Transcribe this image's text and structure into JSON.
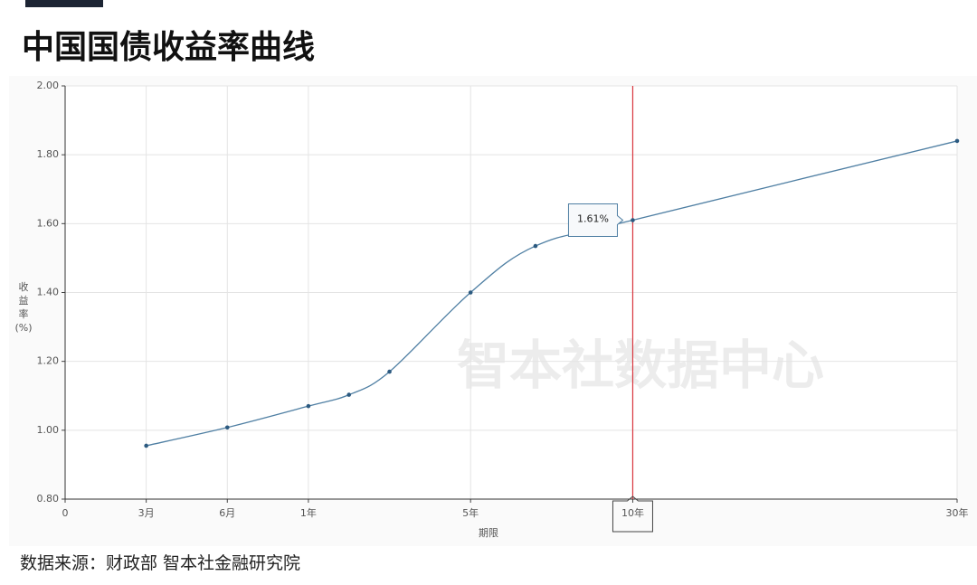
{
  "title": "中国国债收益率曲线",
  "source": "数据来源：财政部 智本社金融研究院",
  "watermark": "智本社数据中心",
  "chart_data": {
    "type": "line",
    "x_label": "期限",
    "y_label": "收益率(%)",
    "x": [
      0.25,
      0.5,
      1,
      2,
      3,
      5,
      7,
      10,
      30
    ],
    "series": [
      {
        "name": "收益率",
        "color": "#4f7fa3",
        "values": [
          0.955,
          1.008,
          1.07,
          1.103,
          1.17,
          1.4,
          1.535,
          1.61,
          1.84
        ]
      }
    ],
    "xticks": [
      0,
      {
        "value": 0.25,
        "label": "3月"
      },
      {
        "value": 0.5,
        "label": "6月"
      },
      {
        "value": 1,
        "label": "1年"
      },
      {
        "value": 5,
        "label": "5年"
      },
      {
        "value": 10,
        "label": "10年"
      },
      {
        "value": 30,
        "label": "30年"
      }
    ],
    "xlim": [
      0,
      30
    ],
    "ylim": [
      0.8,
      2.0
    ],
    "yticks": [
      {
        "value": 0.8,
        "label": "0.80"
      },
      {
        "value": 1.0,
        "label": "1.00"
      },
      {
        "value": 1.2,
        "label": "1.20"
      },
      {
        "value": 1.4,
        "label": "1.40"
      },
      {
        "value": 1.6,
        "label": "1.60"
      },
      {
        "value": 1.8,
        "label": "1.80"
      },
      {
        "value": 2.0,
        "label": "2.00"
      }
    ],
    "grid": true,
    "crosshair_x": 10,
    "crosshair_color": "#d9363e",
    "tooltip": "1.61%"
  }
}
